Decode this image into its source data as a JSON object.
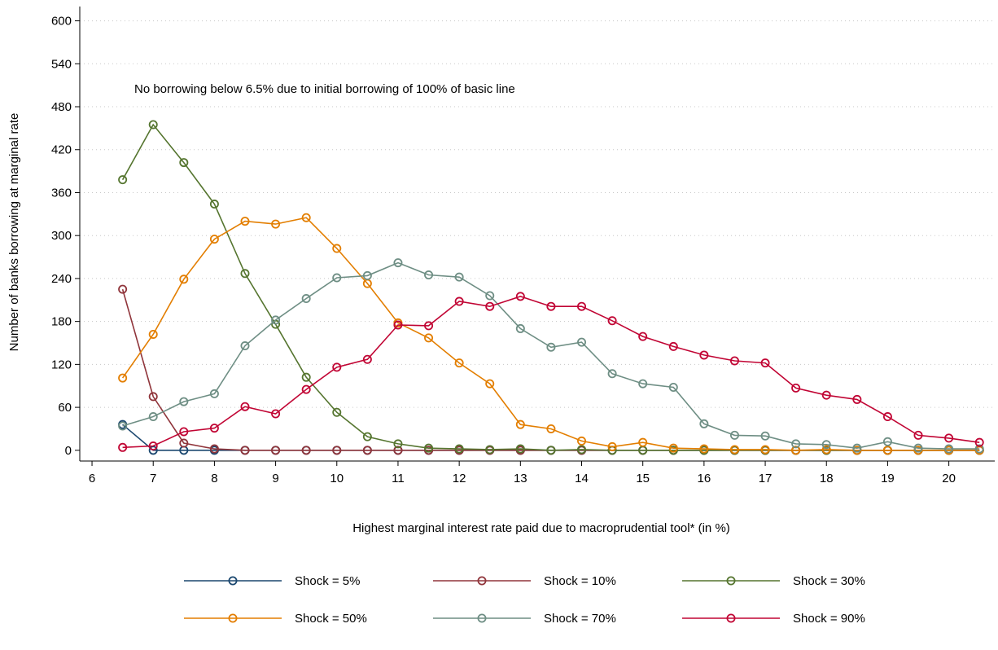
{
  "chart_data": {
    "type": "line",
    "title": "",
    "xlabel": "Highest marginal interest rate paid due to macroprudential tool* (in %)",
    "ylabel": "Number of banks borrowing at marginal rate",
    "annotation": "No borrowing below 6.5% due to initial borrowing of 100% of basic line",
    "xlim": [
      5.8,
      20.75
    ],
    "ylim": [
      -15,
      620
    ],
    "x_ticks": [
      6,
      7,
      8,
      9,
      10,
      11,
      12,
      13,
      14,
      15,
      16,
      17,
      18,
      19,
      20
    ],
    "y_ticks": [
      0,
      60,
      120,
      180,
      240,
      300,
      360,
      420,
      480,
      540,
      600
    ],
    "grid": "horizontal dotted",
    "legend_position": "bottom",
    "x": [
      6.5,
      7,
      7.5,
      8,
      8.5,
      9,
      9.5,
      10,
      10.5,
      11,
      11.5,
      12,
      12.5,
      13,
      13.5,
      14,
      14.5,
      15,
      15.5,
      16,
      16.5,
      17,
      17.5,
      18,
      18.5,
      19,
      19.5,
      20,
      20.5
    ],
    "series": [
      {
        "name": "Shock = 5%",
        "color": "#1a476f",
        "values": [
          36,
          0,
          0,
          0,
          0,
          0,
          0,
          0,
          0,
          0,
          0,
          0,
          0,
          0,
          0,
          0,
          0,
          0,
          0,
          0,
          0,
          0,
          0,
          0,
          0,
          0,
          0,
          0,
          0
        ]
      },
      {
        "name": "Shock = 10%",
        "color": "#90353b",
        "values": [
          225,
          75,
          10,
          2,
          0,
          0,
          0,
          0,
          0,
          0,
          0,
          0,
          0,
          0,
          0,
          0,
          0,
          0,
          0,
          0,
          0,
          0,
          0,
          0,
          0,
          0,
          0,
          0,
          0
        ]
      },
      {
        "name": "Shock = 30%",
        "color": "#55752f",
        "values": [
          378,
          455,
          402,
          344,
          247,
          176,
          102,
          53,
          19,
          9,
          3,
          2,
          1,
          2,
          0,
          1,
          0,
          0,
          0,
          0,
          0,
          0,
          0,
          0,
          0,
          0,
          0,
          0,
          0
        ]
      },
      {
        "name": "Shock = 50%",
        "color": "#e37e00",
        "values": [
          101,
          162,
          239,
          295,
          320,
          316,
          325,
          282,
          233,
          178,
          157,
          122,
          93,
          36,
          30,
          13,
          5,
          11,
          3,
          2,
          1,
          1,
          0,
          1,
          0,
          0,
          0,
          0,
          0
        ]
      },
      {
        "name": "Shock = 70%",
        "color": "#6e8e84",
        "values": [
          34,
          47,
          68,
          79,
          146,
          182,
          212,
          241,
          244,
          262,
          245,
          242,
          216,
          170,
          144,
          151,
          107,
          93,
          88,
          37,
          21,
          20,
          9,
          8,
          3,
          12,
          3,
          2,
          2
        ]
      },
      {
        "name": "Shock = 90%",
        "color": "#c10534",
        "values": [
          4,
          6,
          26,
          31,
          61,
          51,
          85,
          116,
          127,
          175,
          174,
          208,
          201,
          215,
          201,
          201,
          181,
          159,
          145,
          133,
          125,
          122,
          87,
          77,
          71,
          47,
          21,
          17,
          11
        ]
      }
    ]
  }
}
